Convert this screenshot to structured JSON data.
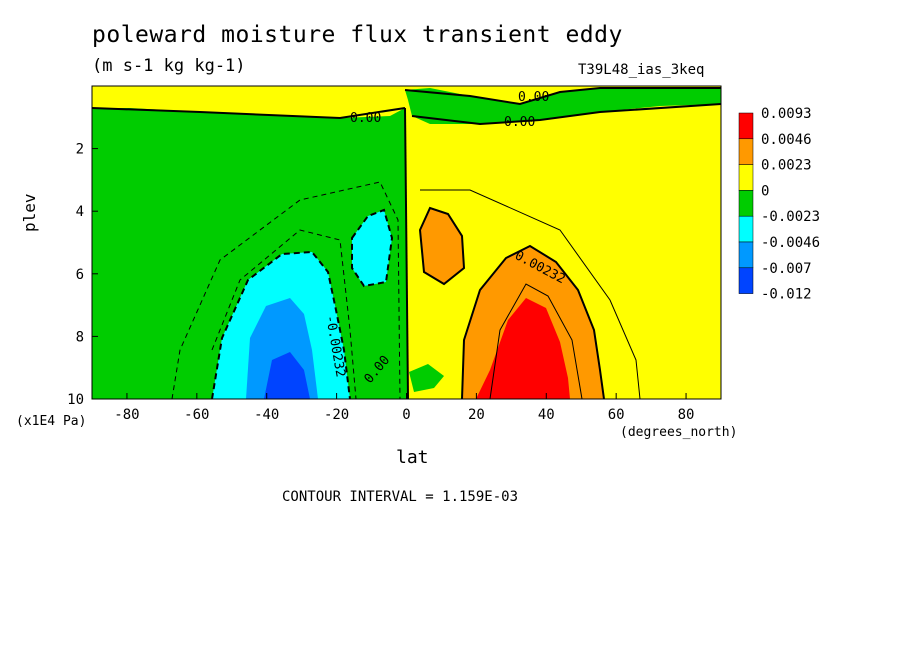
{
  "chart_data": {
    "type": "heatmap",
    "title": "poleward moisture flux transient eddy",
    "subtitle": "(m s-1 kg kg-1)",
    "experiment": "T39L48_ias_3keq",
    "xlabel": "lat",
    "x_units": "(degrees_north)",
    "ylabel": "plev",
    "y_units": "(x1E4 Pa)",
    "xlim": [
      -90,
      90
    ],
    "ylim": [
      10,
      0
    ],
    "x_ticks": [
      -80,
      -60,
      -40,
      -20,
      0,
      20,
      40,
      60,
      80
    ],
    "x_tick_labels": [
      "-80",
      "-60",
      "-40",
      "-20",
      "0",
      "20",
      "40",
      "60",
      "80"
    ],
    "y_ticks": [
      2,
      4,
      6,
      8,
      10
    ],
    "y_tick_labels": [
      "2",
      "4",
      "6",
      "8",
      "10"
    ],
    "contour_interval": "CONTOUR INTERVAL = 1.159E-03",
    "contour_labels": [
      "0.00",
      "0.00",
      "0.00",
      "0.00232",
      "-0.00232",
      "0.00"
    ],
    "legend": {
      "placement": "right",
      "colors": [
        "#ff0000",
        "#ff9900",
        "#ffff00",
        "#00cc00",
        "#00ffff",
        "#0099ff",
        "#0044ff"
      ],
      "boundaries": [
        "0.0093",
        "0.0046",
        "0.0023",
        "0",
        "-0.0023",
        "-0.0046",
        "-0.007",
        "-0.012"
      ]
    }
  }
}
